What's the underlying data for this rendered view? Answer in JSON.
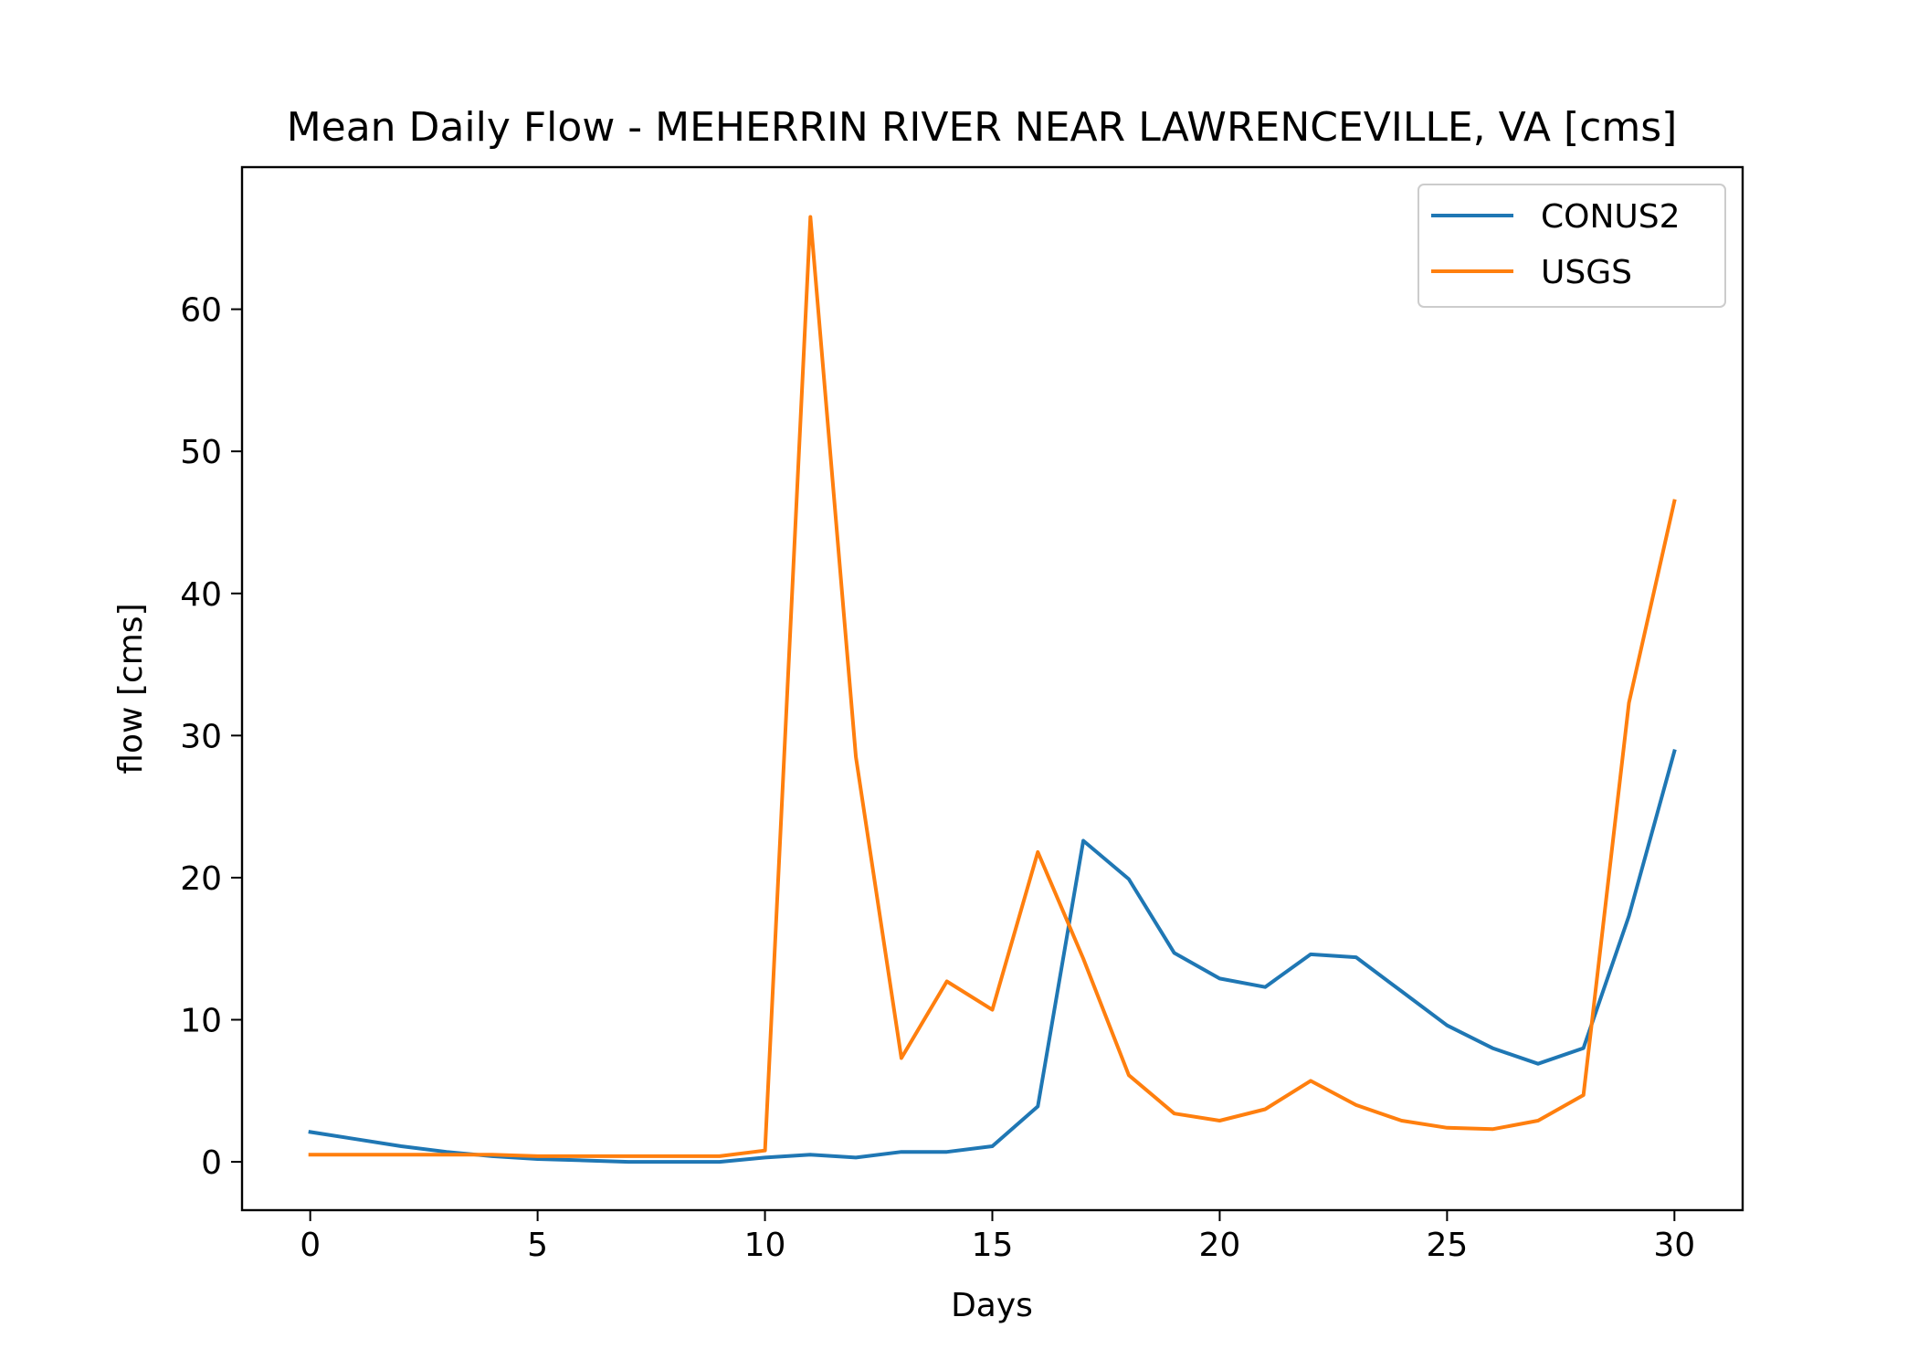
{
  "chart_data": {
    "type": "line",
    "title": "Mean Daily Flow - MEHERRIN RIVER NEAR LAWRENCEVILLE, VA [cms]",
    "xlabel": "Days",
    "ylabel": "flow [cms]",
    "xlim": [
      -1.5,
      31.5
    ],
    "ylim": [
      -3.4,
      70
    ],
    "xticks": [
      0,
      5,
      10,
      15,
      20,
      25,
      30
    ],
    "yticks": [
      0,
      10,
      20,
      30,
      40,
      50,
      60
    ],
    "grid": false,
    "legend_position": "top-right",
    "x": [
      0,
      1,
      2,
      3,
      4,
      5,
      6,
      7,
      8,
      9,
      10,
      11,
      12,
      13,
      14,
      15,
      16,
      17,
      18,
      19,
      20,
      21,
      22,
      23,
      24,
      25,
      26,
      27,
      28,
      29,
      30
    ],
    "series": [
      {
        "name": "CONUS2",
        "color": "#1f77b4",
        "values": [
          2.1,
          1.6,
          1.1,
          0.7,
          0.4,
          0.2,
          0.1,
          0.0,
          0.0,
          0.0,
          0.3,
          0.5,
          0.3,
          0.7,
          0.7,
          1.1,
          3.9,
          22.6,
          19.9,
          14.7,
          12.9,
          12.3,
          14.6,
          14.4,
          12.0,
          9.6,
          8.0,
          6.9,
          8.0,
          17.3,
          28.9
        ]
      },
      {
        "name": "USGS",
        "color": "#ff7f0e",
        "values": [
          0.5,
          0.5,
          0.5,
          0.5,
          0.5,
          0.4,
          0.4,
          0.4,
          0.4,
          0.4,
          0.8,
          66.5,
          28.5,
          7.3,
          12.7,
          10.7,
          21.8,
          14.3,
          6.1,
          3.4,
          2.9,
          3.7,
          5.7,
          4.0,
          2.9,
          2.4,
          2.3,
          2.9,
          4.7,
          32.3,
          46.5
        ]
      }
    ]
  }
}
